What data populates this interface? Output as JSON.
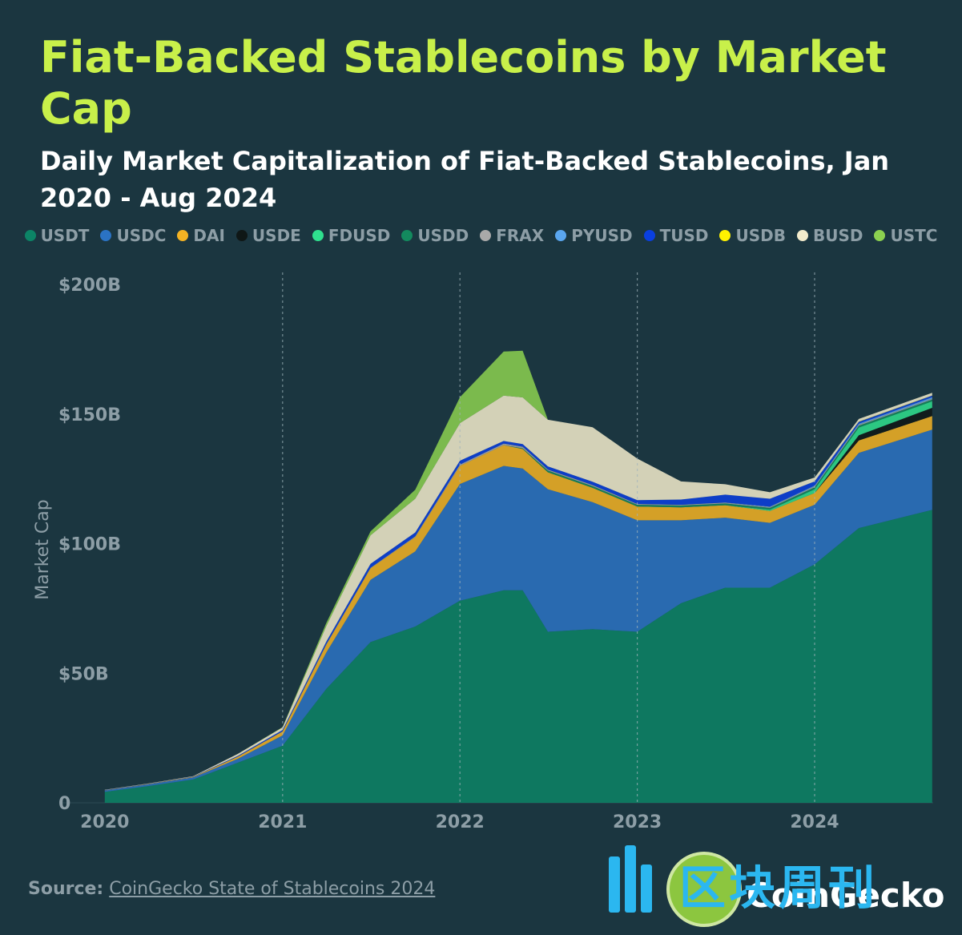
{
  "header": {
    "title": "Fiat-Backed Stablecoins by Market Cap",
    "subtitle": "Daily Market Capitalization of Fiat-Backed Stablecoins, Jan 2020 - Aug 2024"
  },
  "legend": [
    {
      "label": "USDT",
      "color": "#0c8466"
    },
    {
      "label": "USDC",
      "color": "#2b73c4"
    },
    {
      "label": "DAI",
      "color": "#f4b323"
    },
    {
      "label": "USDE",
      "color": "#0f1716"
    },
    {
      "label": "FDUSD",
      "color": "#2fe08e"
    },
    {
      "label": "USDD",
      "color": "#138a5e"
    },
    {
      "label": "FRAX",
      "color": "#a9a9a9"
    },
    {
      "label": "PYUSD",
      "color": "#5aa6ef"
    },
    {
      "label": "TUSD",
      "color": "#0a3fe0"
    },
    {
      "label": "USDB",
      "color": "#fff200"
    },
    {
      "label": "BUSD",
      "color": "#f3eccc"
    },
    {
      "label": "USTC",
      "color": "#8cd150"
    }
  ],
  "chart_data": {
    "type": "area",
    "stacked": true,
    "ylabel": "Market Cap",
    "ylim": [
      0,
      200
    ],
    "y_unit": "B USD",
    "yticks": [
      {
        "value": 0,
        "label": "0"
      },
      {
        "value": 50,
        "label": "$50B"
      },
      {
        "value": 100,
        "label": "$100B"
      },
      {
        "value": 150,
        "label": "$150B"
      },
      {
        "value": 200,
        "label": "$200B"
      }
    ],
    "xlim": [
      "2019-10-01",
      "2024-09-01"
    ],
    "xticks": [
      {
        "value": "2020-01-01",
        "label": "2020"
      },
      {
        "value": "2021-01-01",
        "label": "2021"
      },
      {
        "value": "2022-01-01",
        "label": "2022"
      },
      {
        "value": "2023-01-01",
        "label": "2023"
      },
      {
        "value": "2024-01-01",
        "label": "2024"
      }
    ],
    "vertical_gridlines": [
      "2021-01-01",
      "2022-01-01",
      "2023-01-01",
      "2024-01-01"
    ],
    "x": [
      "2020-01-01",
      "2020-04-01",
      "2020-07-01",
      "2020-10-01",
      "2021-01-01",
      "2021-04-01",
      "2021-07-01",
      "2021-10-01",
      "2022-01-01",
      "2022-04-01",
      "2022-05-10",
      "2022-07-01",
      "2022-10-01",
      "2023-01-01",
      "2023-04-01",
      "2023-07-01",
      "2023-10-01",
      "2024-01-01",
      "2024-04-01",
      "2024-08-30"
    ],
    "series": [
      {
        "name": "USDT",
        "values": [
          4.2,
          6.5,
          9.0,
          15.5,
          22.0,
          44.0,
          62.0,
          68.0,
          78.0,
          82.0,
          82.0,
          66.0,
          67.0,
          66.0,
          77.0,
          83.0,
          83.0,
          92.0,
          106.0,
          113.0
        ]
      },
      {
        "name": "USDC",
        "values": [
          0.5,
          0.7,
          0.8,
          1.5,
          4.0,
          14.0,
          24.0,
          29.0,
          45.0,
          48.0,
          47.0,
          55.0,
          49.0,
          43.0,
          32.0,
          27.0,
          25.0,
          23.0,
          29.0,
          31.0
        ]
      },
      {
        "name": "DAI",
        "values": [
          0.1,
          0.1,
          0.2,
          0.8,
          1.5,
          3.0,
          4.5,
          5.5,
          7.0,
          8.0,
          7.5,
          6.5,
          5.5,
          5.3,
          5.0,
          4.8,
          4.6,
          4.5,
          4.8,
          5.2
        ]
      },
      {
        "name": "USDE",
        "values": [
          0,
          0,
          0,
          0,
          0,
          0,
          0,
          0,
          0,
          0,
          0,
          0,
          0,
          0,
          0,
          0,
          0,
          0,
          2.0,
          3.2
        ]
      },
      {
        "name": "FDUSD",
        "values": [
          0,
          0,
          0,
          0,
          0,
          0,
          0,
          0,
          0,
          0,
          0,
          0,
          0,
          0,
          0,
          0,
          0.5,
          1.5,
          3.0,
          2.5
        ]
      },
      {
        "name": "USDD",
        "values": [
          0,
          0,
          0,
          0,
          0,
          0,
          0,
          0,
          0,
          0,
          0.3,
          0.7,
          0.7,
          0.7,
          0.7,
          0.7,
          0.7,
          0.7,
          0.7,
          0.7
        ]
      },
      {
        "name": "FRAX",
        "values": [
          0,
          0,
          0,
          0,
          0.1,
          0.2,
          0.2,
          0.3,
          0.5,
          0.6,
          0.6,
          0.4,
          0.4,
          0.3,
          0.3,
          0.3,
          0.3,
          0.4,
          0.4,
          0.3
        ]
      },
      {
        "name": "PYUSD",
        "values": [
          0,
          0,
          0,
          0,
          0,
          0,
          0,
          0,
          0,
          0,
          0,
          0,
          0,
          0,
          0,
          0.1,
          0.2,
          0.3,
          0.4,
          0.6
        ]
      },
      {
        "name": "TUSD",
        "values": [
          0.1,
          0.1,
          0.1,
          0.3,
          0.5,
          1.0,
          1.5,
          1.5,
          1.5,
          1.0,
          1.0,
          1.2,
          1.3,
          1.5,
          2.0,
          3.0,
          3.0,
          1.6,
          0.7,
          0.6
        ]
      },
      {
        "name": "USDB",
        "values": [
          0,
          0,
          0,
          0,
          0,
          0,
          0,
          0,
          0,
          0,
          0,
          0,
          0,
          0,
          0,
          0,
          0,
          0,
          0.1,
          0.1
        ]
      },
      {
        "name": "BUSD",
        "values": [
          0.1,
          0.1,
          0.2,
          0.8,
          1.0,
          6.0,
          11.0,
          13.0,
          14.5,
          17.5,
          18.0,
          18.0,
          21.0,
          16.0,
          7.0,
          4.0,
          2.5,
          1.5,
          1.0,
          1.0
        ]
      },
      {
        "name": "USTC",
        "values": [
          0,
          0,
          0,
          0,
          0.1,
          1.2,
          1.5,
          3.5,
          10.0,
          17.0,
          18.0,
          0,
          0,
          0,
          0,
          0,
          0,
          0,
          0,
          0
        ]
      }
    ]
  },
  "footer": {
    "source_prefix": "Source:",
    "source_text": "CoinGecko State of Stablecoins 2024",
    "brand": "CoinGecko",
    "watermark": "区块周刊"
  }
}
